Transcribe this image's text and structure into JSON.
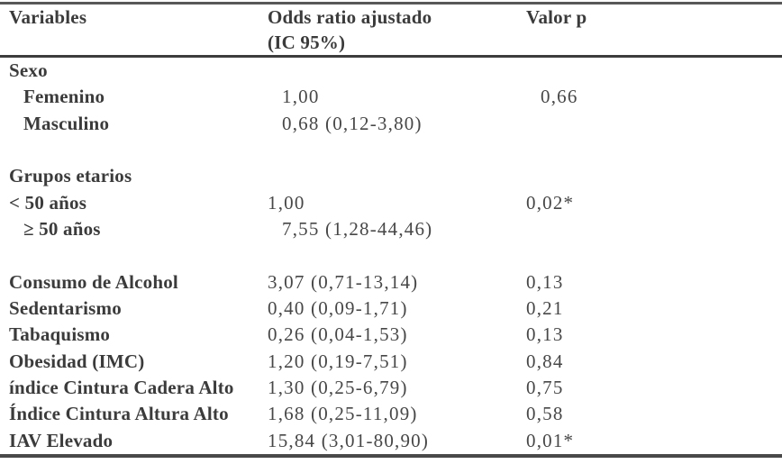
{
  "table": {
    "header": {
      "col1": "Variables",
      "col2_line1": "Odds ratio ajustado",
      "col2_line2": "(IC 95%)",
      "col3": "Valor p"
    },
    "colors": {
      "text_bold": "#3b3b3b",
      "text_regular": "#474747",
      "rule_top": "#585858",
      "rule_header": "#3c3c3c",
      "rule_bottom": "#494949"
    },
    "rows": [
      {
        "type": "section",
        "variable": "Sexo",
        "odds_ratio": "",
        "p_value": "",
        "indent": 0
      },
      {
        "type": "data",
        "variable": "Femenino",
        "odds_ratio": "1,00",
        "p_value": "0,66",
        "indent": 1
      },
      {
        "type": "data",
        "variable": "Masculino",
        "odds_ratio": "0,68 (0,12-3,80)",
        "p_value": "",
        "indent": 1
      },
      {
        "type": "spacer",
        "variable": "",
        "odds_ratio": "",
        "p_value": "",
        "indent": 0
      },
      {
        "type": "section",
        "variable": "Grupos etarios",
        "odds_ratio": "",
        "p_value": "",
        "indent": 0
      },
      {
        "type": "data",
        "variable": "< 50 años",
        "odds_ratio": "1,00",
        "p_value": "0,02*",
        "indent": 0
      },
      {
        "type": "data",
        "variable": "≥ 50 años",
        "odds_ratio": "7,55 (1,28-44,46)",
        "p_value": "",
        "indent": 1
      },
      {
        "type": "spacer",
        "variable": "",
        "odds_ratio": "",
        "p_value": "",
        "indent": 0
      },
      {
        "type": "data",
        "variable": "Consumo de Alcohol",
        "odds_ratio": "3,07 (0,71-13,14)",
        "p_value": "0,13",
        "indent": 0
      },
      {
        "type": "data",
        "variable": "Sedentarismo",
        "odds_ratio": "0,40 (0,09-1,71)",
        "p_value": "0,21",
        "indent": 0
      },
      {
        "type": "data",
        "variable": "Tabaquismo",
        "odds_ratio": "0,26 (0,04-1,53)",
        "p_value": "0,13",
        "indent": 0
      },
      {
        "type": "data",
        "variable": "Obesidad (IMC)",
        "odds_ratio": "1,20 (0,19-7,51)",
        "p_value": "0,84",
        "indent": 0
      },
      {
        "type": "data",
        "variable": "índice Cintura Cadera Alto",
        "odds_ratio": "1,30 (0,25-6,79)",
        "p_value": "0,75",
        "indent": 0
      },
      {
        "type": "data",
        "variable": "Índice Cintura Altura Alto",
        "odds_ratio": "1,68 (0,25-11,09)",
        "p_value": "0,58",
        "indent": 0
      },
      {
        "type": "data",
        "variable": "IAV Elevado",
        "odds_ratio": "15,84 (3,01-80,90)",
        "p_value": "0,01*",
        "indent": 0
      }
    ]
  }
}
